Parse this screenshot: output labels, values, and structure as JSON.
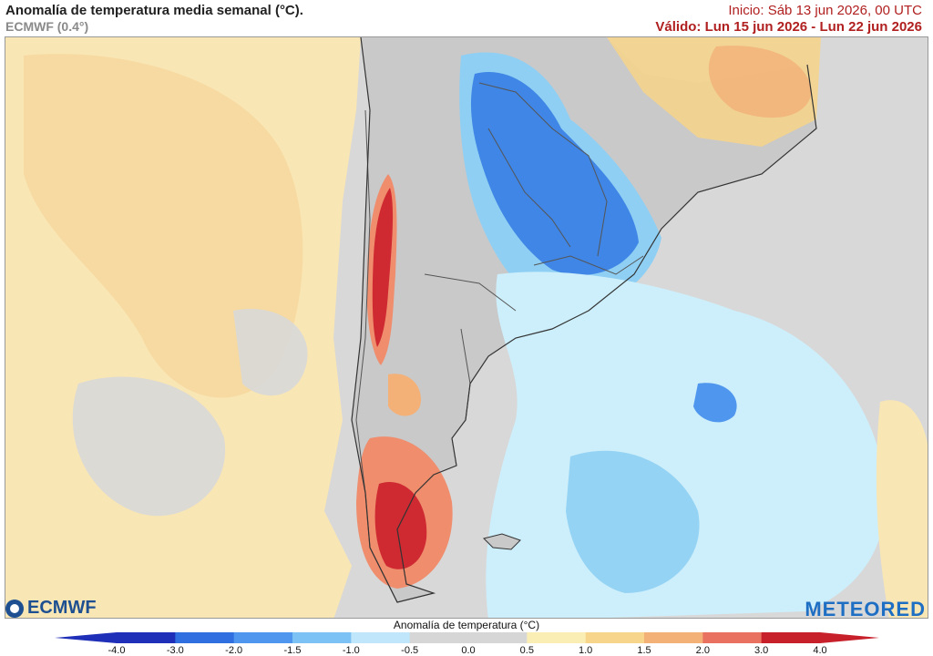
{
  "header": {
    "title": "Anomalía de temperatura media semanal (°C).",
    "subtitle": "ECMWF (0.4°)",
    "init": "Inicio: Sáb 13 jun 2026, 00 UTC",
    "valid": "Válido: Lun 15 jun 2026 - Lun 22 jun 2026"
  },
  "logos": {
    "left": "ECMWF",
    "right": "METEORED"
  },
  "legend": {
    "title": "Anomalía de temperatura (°C)",
    "ticks": [
      "-4.0",
      "-3.0",
      "-2.0",
      "-1.5",
      "-1.0",
      "-0.5",
      "0.0",
      "0.5",
      "1.0",
      "1.5",
      "2.0",
      "3.0",
      "4.0"
    ],
    "colors": [
      "#1f2fb8",
      "#2f6fe0",
      "#4f96ef",
      "#7cc2f4",
      "#bfe6fb",
      "#d6d6d6",
      "#d6d6d6",
      "#fbeeb4",
      "#f7d58a",
      "#f3b077",
      "#e8715f",
      "#c8202a"
    ]
  },
  "map_colors": {
    "ocean_neutral": "#d8d8d8",
    "warm_light": "#f9e6b5",
    "warm_mid": "#f6cf8f",
    "warm_strong": "#ef8d6d",
    "warm_extreme": "#cf2a32",
    "cool_light": "#cdeffb",
    "cool_mid": "#8fcff3",
    "cool_strong": "#3f86e6",
    "land_gray": "#c9c9c9"
  }
}
